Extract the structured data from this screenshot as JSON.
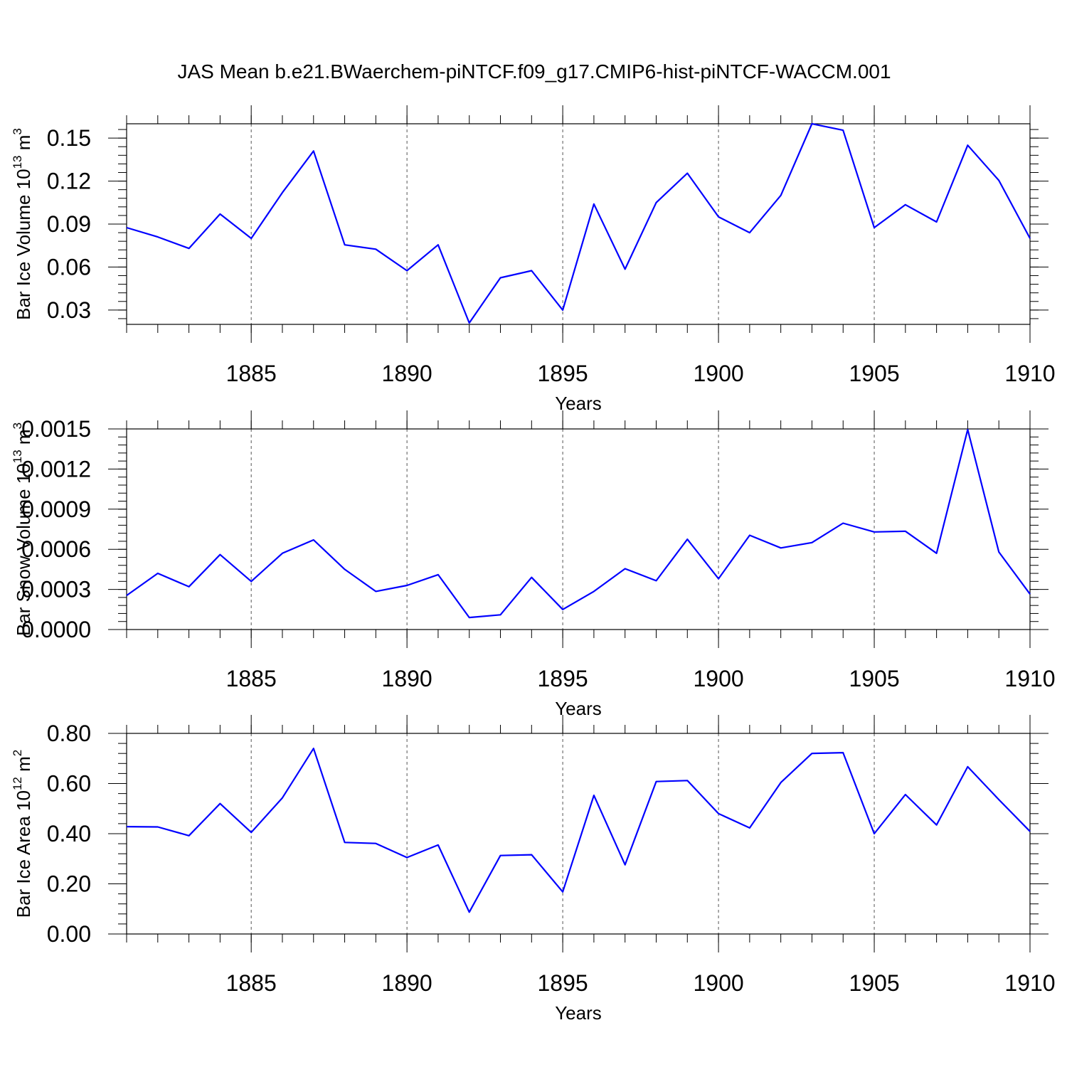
{
  "title": "JAS Mean b.e21.BWaerchem-piNTCF.f09_g17.CMIP6-hist-piNTCF-WACCM.001",
  "colors": {
    "series": "#0000ff",
    "axes": "#000000",
    "grid": "#555555"
  },
  "chart_data": [
    {
      "type": "line",
      "title": "JAS Mean b.e21.BWaerchem-piNTCF.f09_g17.CMIP6-hist-piNTCF-WACCM.001",
      "xlabel": "Years",
      "ylabel": "Bar Ice Volume",
      "yunit_base": "10",
      "yunit_exp": "13",
      "yunit_tail": "m",
      "yunit_tail_exp": "3",
      "xlim": [
        1881,
        1910
      ],
      "ylim": [
        0.02,
        0.16
      ],
      "xticks": [
        1885,
        1890,
        1895,
        1900,
        1905,
        1910
      ],
      "xtick_labels": [
        "1885",
        "1890",
        "1895",
        "1900",
        "1905",
        "1910"
      ],
      "yticks": [
        0.03,
        0.06,
        0.09,
        0.12,
        0.15
      ],
      "ytick_labels": [
        "0.03",
        "0.06",
        "0.09",
        "0.12",
        "0.15"
      ],
      "grid": "vertical dashed at major x ticks",
      "series": [
        {
          "name": "Bar Ice Volume",
          "x": [
            1881,
            1882,
            1883,
            1884,
            1885,
            1886,
            1887,
            1888,
            1889,
            1890,
            1891,
            1892,
            1893,
            1894,
            1895,
            1896,
            1897,
            1898,
            1899,
            1900,
            1901,
            1902,
            1903,
            1904,
            1905,
            1906,
            1907,
            1908,
            1909,
            1910
          ],
          "values": [
            0.0875,
            0.081,
            0.073,
            0.097,
            0.08,
            0.112,
            0.141,
            0.0755,
            0.0725,
            0.0575,
            0.0755,
            0.021,
            0.0525,
            0.0575,
            0.03,
            0.104,
            0.0585,
            0.105,
            0.1255,
            0.095,
            0.084,
            0.11,
            0.16,
            0.1555,
            0.0875,
            0.1035,
            0.0915,
            0.145,
            0.1205,
            0.08
          ]
        }
      ]
    },
    {
      "type": "line",
      "xlabel": "Years",
      "ylabel": "Bar Snow Volume",
      "yunit_base": "10",
      "yunit_exp": "13",
      "yunit_tail": "m",
      "yunit_tail_exp": "3",
      "xlim": [
        1881,
        1910
      ],
      "ylim": [
        0.0,
        0.0015
      ],
      "xticks": [
        1885,
        1890,
        1895,
        1900,
        1905,
        1910
      ],
      "xtick_labels": [
        "1885",
        "1890",
        "1895",
        "1900",
        "1905",
        "1910"
      ],
      "yticks": [
        0.0,
        0.0003,
        0.0006,
        0.0009,
        0.0012,
        0.0015
      ],
      "ytick_labels": [
        "0.0000",
        "0.0003",
        "0.0006",
        "0.0009",
        "0.0012",
        "0.0015"
      ],
      "grid": "vertical dashed at major x ticks",
      "series": [
        {
          "name": "Bar Snow Volume",
          "x": [
            1881,
            1882,
            1883,
            1884,
            1885,
            1886,
            1887,
            1888,
            1889,
            1890,
            1891,
            1892,
            1893,
            1894,
            1895,
            1896,
            1897,
            1898,
            1899,
            1900,
            1901,
            1902,
            1903,
            1904,
            1905,
            1906,
            1907,
            1908,
            1909,
            1910
          ],
          "values": [
            0.000255,
            0.00042,
            0.00032,
            0.00056,
            0.00036,
            0.00057,
            0.00067,
            0.00045,
            0.000285,
            0.00033,
            0.00041,
            9e-05,
            0.00011,
            0.00039,
            0.00015,
            0.000285,
            0.000455,
            0.000365,
            0.000675,
            0.00038,
            0.000705,
            0.00061,
            0.00065,
            0.000795,
            0.00073,
            0.000735,
            0.00057,
            0.001495,
            0.00058,
            0.000265
          ]
        }
      ]
    },
    {
      "type": "line",
      "xlabel": "Years",
      "ylabel": "Bar Ice Area",
      "yunit_base": "10",
      "yunit_exp": "12",
      "yunit_tail": "m",
      "yunit_tail_exp": "2",
      "xlim": [
        1881,
        1910
      ],
      "ylim": [
        0.0,
        0.8
      ],
      "xticks": [
        1885,
        1890,
        1895,
        1900,
        1905,
        1910
      ],
      "xtick_labels": [
        "1885",
        "1890",
        "1895",
        "1900",
        "1905",
        "1910"
      ],
      "yticks": [
        0.0,
        0.2,
        0.4,
        0.6,
        0.8
      ],
      "ytick_labels": [
        "0.00",
        "0.20",
        "0.40",
        "0.60",
        "0.80"
      ],
      "grid": "vertical dashed at major x ticks",
      "series": [
        {
          "name": "Bar Ice Area",
          "x": [
            1881,
            1882,
            1883,
            1884,
            1885,
            1886,
            1887,
            1888,
            1889,
            1890,
            1891,
            1892,
            1893,
            1894,
            1895,
            1896,
            1897,
            1898,
            1899,
            1900,
            1901,
            1902,
            1903,
            1904,
            1905,
            1906,
            1907,
            1908,
            1909,
            1910
          ],
          "values": [
            0.428,
            0.427,
            0.392,
            0.52,
            0.405,
            0.543,
            0.74,
            0.365,
            0.361,
            0.305,
            0.355,
            0.087,
            0.313,
            0.316,
            0.168,
            0.553,
            0.276,
            0.608,
            0.612,
            0.48,
            0.423,
            0.604,
            0.72,
            0.723,
            0.4,
            0.556,
            0.435,
            0.667,
            0.536,
            0.409
          ]
        }
      ]
    }
  ]
}
